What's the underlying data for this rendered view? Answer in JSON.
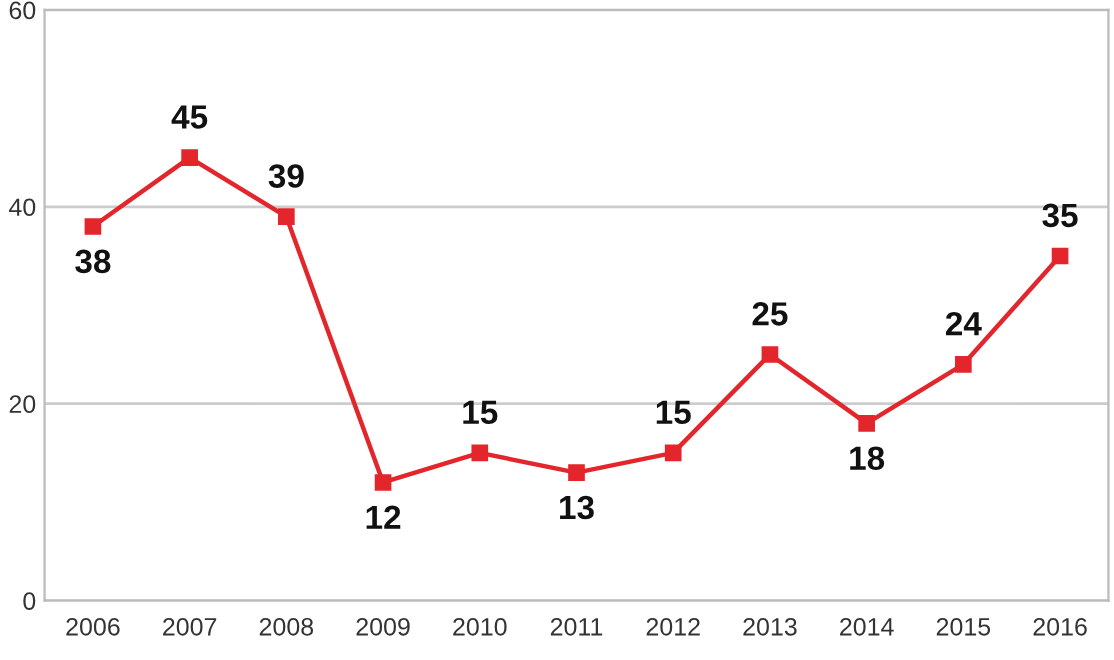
{
  "chart_data": {
    "type": "line",
    "categories": [
      "2006",
      "2007",
      "2008",
      "2009",
      "2010",
      "2011",
      "2012",
      "2013",
      "2014",
      "2015",
      "2016"
    ],
    "series": [
      {
        "color": "#e3262b",
        "values": [
          38,
          45,
          39,
          12,
          15,
          13,
          15,
          25,
          18,
          24,
          35
        ]
      }
    ],
    "ylim": [
      0,
      60
    ],
    "yticks": [
      0,
      20,
      40,
      60
    ],
    "grid": "y",
    "marker": "square",
    "line_style": "solid",
    "data_labels": true,
    "legend": false
  }
}
